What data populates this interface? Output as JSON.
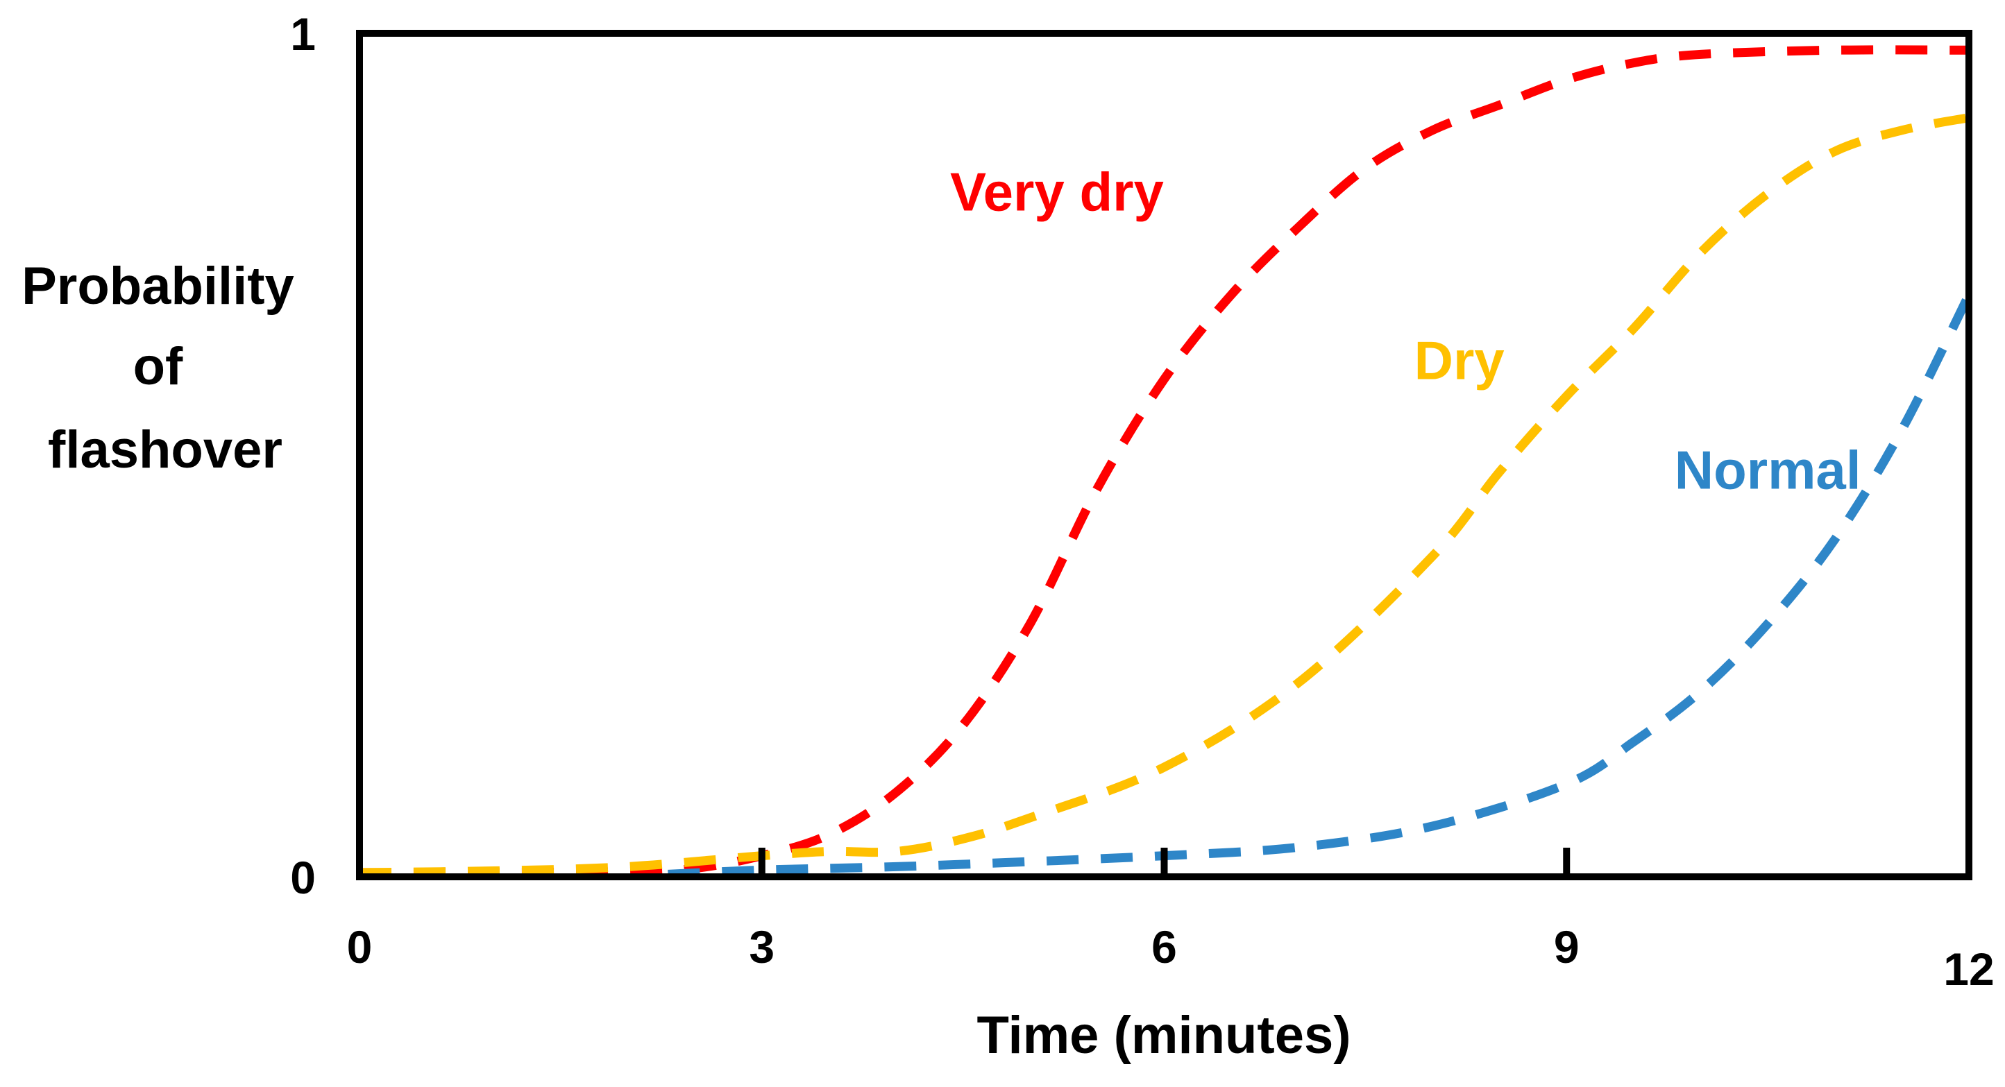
{
  "chart_data": {
    "type": "line",
    "title": "",
    "xlabel": "Time (minutes)",
    "ylabel_lines": [
      "Probability",
      "of",
      "flashover"
    ],
    "xlim": [
      0,
      12
    ],
    "ylim": [
      0,
      1
    ],
    "x_ticks": [
      0,
      3,
      6,
      9,
      12
    ],
    "x_tick_labels": [
      "0",
      "3",
      "6",
      "9",
      "12"
    ],
    "y_tick_labels": [
      {
        "value": 0,
        "label": "0"
      },
      {
        "value": 1,
        "label": "1"
      }
    ],
    "grid": false,
    "legend": "inline labels",
    "line_style": "dashed",
    "series": [
      {
        "name": "Very dry",
        "color": "#ff0000",
        "label_at": [
          5.2,
          0.79
        ],
        "x": [
          0,
          1,
          2,
          2.5,
          3,
          3.5,
          4,
          4.5,
          5,
          5.5,
          6,
          6.5,
          7,
          7.5,
          8,
          8.5,
          9,
          9.5,
          10,
          11,
          12
        ],
        "y": [
          0.005,
          0.005,
          0.006,
          0.01,
          0.025,
          0.05,
          0.1,
          0.18,
          0.3,
          0.46,
          0.59,
          0.69,
          0.77,
          0.84,
          0.885,
          0.915,
          0.945,
          0.965,
          0.975,
          0.98,
          0.98
        ]
      },
      {
        "name": "Dry",
        "color": "#ffc000",
        "label_at": [
          8.2,
          0.59
        ],
        "x": [
          0,
          1,
          2,
          3,
          3.5,
          4,
          4.5,
          5,
          6,
          7,
          8,
          8.5,
          9,
          9.5,
          10,
          10.5,
          11,
          11.5,
          12
        ],
        "y": [
          0.005,
          0.007,
          0.012,
          0.025,
          0.03,
          0.03,
          0.045,
          0.07,
          0.13,
          0.23,
          0.38,
          0.48,
          0.57,
          0.65,
          0.74,
          0.81,
          0.86,
          0.885,
          0.9
        ]
      },
      {
        "name": "Normal",
        "color": "#2e86c8",
        "label_at": [
          10.5,
          0.46
        ],
        "x": [
          2.3,
          3,
          4,
          5,
          6,
          7,
          8,
          9,
          9.5,
          10,
          10.5,
          11,
          11.5,
          12
        ],
        "y": [
          0.003,
          0.008,
          0.012,
          0.018,
          0.025,
          0.035,
          0.06,
          0.11,
          0.16,
          0.22,
          0.3,
          0.4,
          0.53,
          0.69
        ]
      }
    ]
  }
}
